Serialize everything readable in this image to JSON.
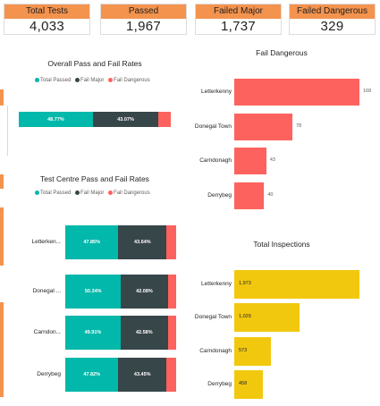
{
  "kpis": [
    {
      "label": "Total Tests",
      "value": "4,033"
    },
    {
      "label": "Passed",
      "value": "1,967"
    },
    {
      "label": "Failed Major",
      "value": "1,737"
    },
    {
      "label": "Failed Dangerous",
      "value": "329"
    }
  ],
  "colors": {
    "kpi_header": "#f4934e",
    "pass": "#01b8aa",
    "major": "#374649",
    "dangerous": "#fd625e",
    "inspections": "#f2c80f"
  },
  "chart_data": [
    {
      "type": "bar",
      "orientation": "horizontal",
      "stacked": "100%",
      "title": "Overall Pass and Fail Rates",
      "legend_position": "top",
      "series": [
        {
          "name": "Total Passed",
          "values": [
            48.77
          ],
          "labels": [
            "48.77%"
          ]
        },
        {
          "name": "Fail Major",
          "values": [
            43.07
          ],
          "labels": [
            "43.07%"
          ]
        },
        {
          "name": "Fail Dangerous",
          "values": [
            8.16
          ],
          "labels": [
            ""
          ]
        }
      ],
      "categories": [
        ""
      ]
    },
    {
      "type": "bar",
      "orientation": "horizontal",
      "stacked": "100%",
      "title": "Test Centre Pass and Fail Rates",
      "legend_position": "top",
      "categories": [
        "Letterken...",
        "Donegal ...",
        "Carndon...",
        "Derrybeg"
      ],
      "series": [
        {
          "name": "Total Passed",
          "values": [
            47.85,
            50.34,
            49.91,
            47.82
          ],
          "labels": [
            "47.85%",
            "50.34%",
            "49.91%",
            "47.82%"
          ]
        },
        {
          "name": "Fail Major",
          "values": [
            43.64,
            42.08,
            42.58,
            43.45
          ],
          "labels": [
            "43.64%",
            "42.08%",
            "42.58%",
            "43.45%"
          ]
        },
        {
          "name": "Fail Dangerous",
          "values": [
            8.51,
            7.58,
            7.51,
            8.73
          ],
          "labels": [
            "",
            "",
            "",
            ""
          ]
        }
      ]
    },
    {
      "type": "bar",
      "orientation": "horizontal",
      "title": "Fail Dangerous",
      "categories": [
        "Letterkenny",
        "Donegal Town",
        "Carndonagh",
        "Derrybeg"
      ],
      "values": [
        168,
        78,
        43,
        40
      ],
      "labels": [
        "168",
        "78",
        "43",
        "40"
      ],
      "xlim": [
        0,
        168
      ]
    },
    {
      "type": "bar",
      "orientation": "horizontal",
      "title": "Total Inspections",
      "categories": [
        "Letterkenny",
        "Donegal Town",
        "Carndonagh",
        "Derrybeg"
      ],
      "values": [
        1973,
        1029,
        573,
        458
      ],
      "labels": [
        "1,973",
        "1,029",
        "573",
        "458"
      ],
      "xlim": [
        0,
        1973
      ]
    }
  ]
}
